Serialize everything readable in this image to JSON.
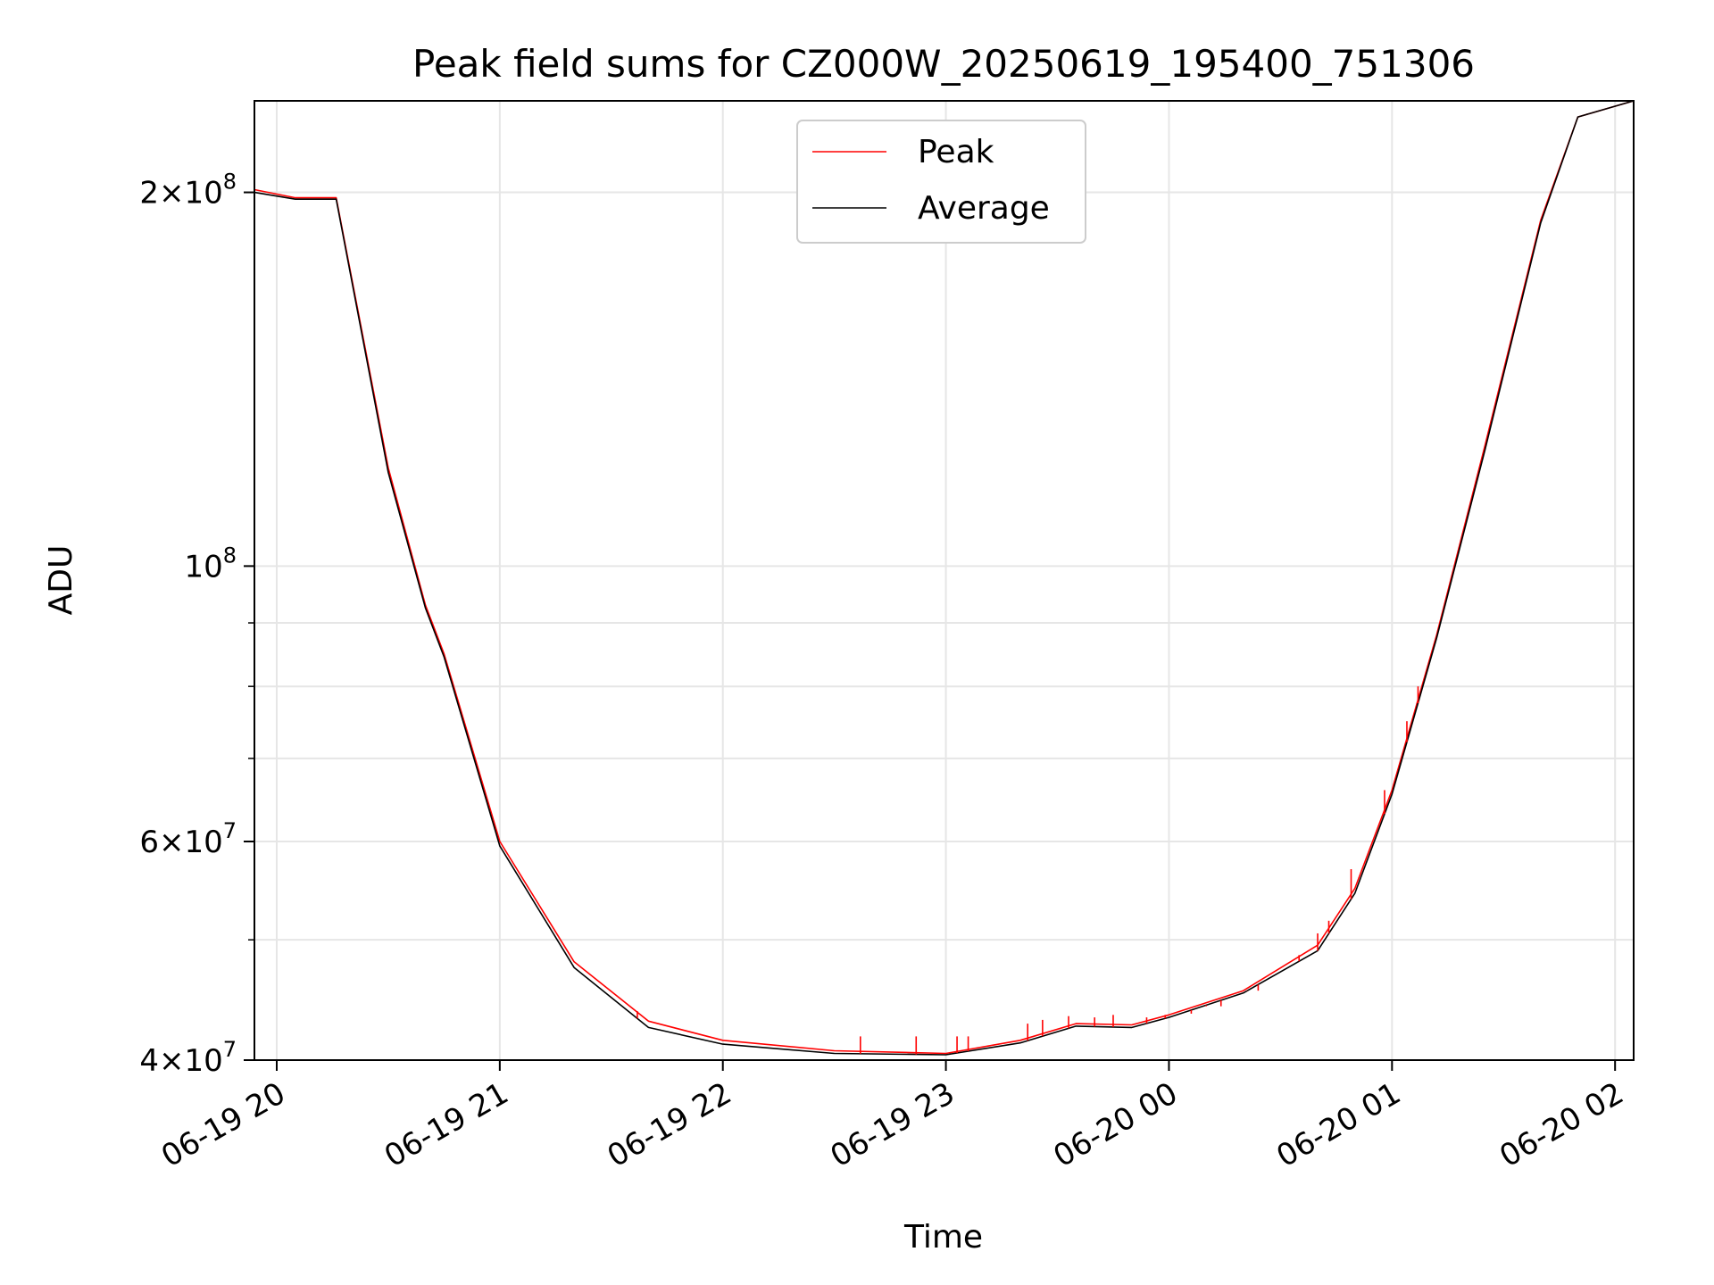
{
  "chart_data": {
    "type": "line",
    "title": "Peak field sums for CZ000W_20250619_195400_751306",
    "xlabel": "Time",
    "ylabel": "ADU",
    "y_scale": "log",
    "xlim": [
      "2025-06-19 19:54",
      "2025-06-20 02:05"
    ],
    "ylim": [
      40000000,
      237000000
    ],
    "grid": true,
    "legend_position": "upper center",
    "x_ticks": [
      {
        "value": "2025-06-19 20:00",
        "label": "06-19 20"
      },
      {
        "value": "2025-06-19 21:00",
        "label": "06-19 21"
      },
      {
        "value": "2025-06-19 22:00",
        "label": "06-19 22"
      },
      {
        "value": "2025-06-19 23:00",
        "label": "06-19 23"
      },
      {
        "value": "2025-06-20 00:00",
        "label": "06-20 00"
      },
      {
        "value": "2025-06-20 01:00",
        "label": "06-20 01"
      },
      {
        "value": "2025-06-20 02:00",
        "label": "06-20 02"
      }
    ],
    "y_ticks": [
      {
        "value": 40000000,
        "mantissa": "4",
        "exponent": "7"
      },
      {
        "value": 60000000,
        "mantissa": "6",
        "exponent": "7"
      },
      {
        "value": 100000000,
        "mantissa": "",
        "exponent": "8"
      },
      {
        "value": 200000000,
        "mantissa": "2",
        "exponent": "8"
      }
    ],
    "y_minor_ticks": [
      50000000,
      70000000,
      80000000,
      90000000
    ],
    "series": [
      {
        "name": "Peak",
        "color": "#ff0000",
        "x": [
          "2025-06-19 19:54",
          "2025-06-19 20:05",
          "2025-06-19 20:16",
          "2025-06-19 20:30",
          "2025-06-19 20:40",
          "2025-06-19 20:45",
          "2025-06-19 21:00",
          "2025-06-19 21:20",
          "2025-06-19 21:40",
          "2025-06-19 22:00",
          "2025-06-19 22:30",
          "2025-06-19 23:00",
          "2025-06-19 23:20",
          "2025-06-19 23:35",
          "2025-06-19 23:50",
          "2025-06-20 00:00",
          "2025-06-20 00:20",
          "2025-06-20 00:40",
          "2025-06-20 00:50",
          "2025-06-20 01:00",
          "2025-06-20 01:12",
          "2025-06-20 01:25",
          "2025-06-20 01:40",
          "2025-06-20 01:50",
          "2025-06-20 02:05"
        ],
        "values": [
          201000000,
          198000000,
          198000000,
          120000000,
          93000000,
          85000000,
          60000000,
          48000000,
          43000000,
          41500000,
          40700000,
          40500000,
          41500000,
          42800000,
          42700000,
          43500000,
          45500000,
          49500000,
          55000000,
          66000000,
          88000000,
          125000000,
          190000000,
          230000000,
          237000000
        ],
        "spikes": [
          {
            "x": "2025-06-19 21:37",
            "value": 43800000
          },
          {
            "x": "2025-06-19 22:37",
            "value": 41800000
          },
          {
            "x": "2025-06-19 22:52",
            "value": 41800000
          },
          {
            "x": "2025-06-19 23:03",
            "value": 41800000
          },
          {
            "x": "2025-06-19 23:06",
            "value": 41800000
          },
          {
            "x": "2025-06-19 23:22",
            "value": 42800000
          },
          {
            "x": "2025-06-19 23:26",
            "value": 43100000
          },
          {
            "x": "2025-06-19 23:33",
            "value": 43400000
          },
          {
            "x": "2025-06-19 23:40",
            "value": 43300000
          },
          {
            "x": "2025-06-19 23:45",
            "value": 43500000
          },
          {
            "x": "2025-06-19 23:54",
            "value": 43300000
          },
          {
            "x": "2025-06-19 23:59",
            "value": 43500000
          },
          {
            "x": "2025-06-20 00:06",
            "value": 43600000
          },
          {
            "x": "2025-06-20 00:10",
            "value": 44200000
          },
          {
            "x": "2025-06-20 00:14",
            "value": 44200000
          },
          {
            "x": "2025-06-20 00:21",
            "value": 45500000
          },
          {
            "x": "2025-06-20 00:24",
            "value": 45500000
          },
          {
            "x": "2025-06-20 00:35",
            "value": 48600000
          },
          {
            "x": "2025-06-20 00:40",
            "value": 50600000
          },
          {
            "x": "2025-06-20 00:43",
            "value": 51800000
          },
          {
            "x": "2025-06-20 00:49",
            "value": 57000000
          },
          {
            "x": "2025-06-20 00:58",
            "value": 66000000
          },
          {
            "x": "2025-06-20 01:04",
            "value": 75000000
          },
          {
            "x": "2025-06-20 01:07",
            "value": 80000000
          }
        ]
      },
      {
        "name": "Average",
        "color": "#000000",
        "x": [
          "2025-06-19 19:54",
          "2025-06-19 20:05",
          "2025-06-19 20:16",
          "2025-06-19 20:30",
          "2025-06-19 20:40",
          "2025-06-19 20:45",
          "2025-06-19 21:00",
          "2025-06-19 21:20",
          "2025-06-19 21:40",
          "2025-06-19 22:00",
          "2025-06-19 22:30",
          "2025-06-19 23:00",
          "2025-06-19 23:20",
          "2025-06-19 23:35",
          "2025-06-19 23:50",
          "2025-06-20 00:00",
          "2025-06-20 00:20",
          "2025-06-20 00:40",
          "2025-06-20 00:50",
          "2025-06-20 01:00",
          "2025-06-20 01:12",
          "2025-06-20 01:25",
          "2025-06-20 01:40",
          "2025-06-20 01:50",
          "2025-06-20 02:05"
        ],
        "values": [
          200000000,
          197500000,
          197500000,
          119000000,
          92500000,
          84500000,
          59500000,
          47500000,
          42500000,
          41200000,
          40500000,
          40400000,
          41300000,
          42600000,
          42500000,
          43300000,
          45300000,
          49000000,
          54500000,
          65500000,
          87500000,
          124000000,
          189000000,
          230000000,
          237000000
        ]
      }
    ]
  }
}
